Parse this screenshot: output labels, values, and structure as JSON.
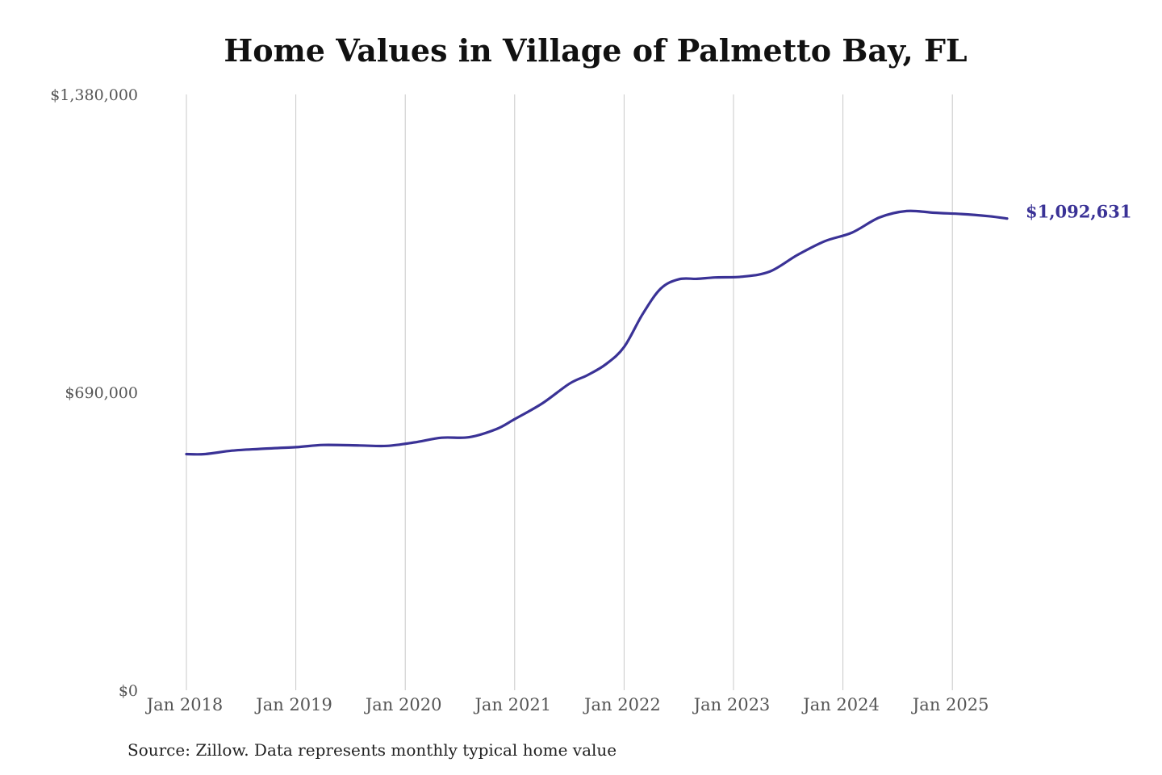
{
  "chart_data": {
    "type": "line",
    "title": "Home Values in Village of Palmetto Bay, FL",
    "xlabel": "",
    "ylabel": "",
    "ylim": [
      0,
      1380000
    ],
    "y_ticks": [
      {
        "value": 0,
        "label": "$0"
      },
      {
        "value": 690000,
        "label": "$690,000"
      },
      {
        "value": 1380000,
        "label": "$1,380,000"
      }
    ],
    "x_ticks": [
      {
        "value": "2018-01",
        "label": "Jan 2018"
      },
      {
        "value": "2019-01",
        "label": "Jan 2019"
      },
      {
        "value": "2020-01",
        "label": "Jan 2020"
      },
      {
        "value": "2021-01",
        "label": "Jan 2021"
      },
      {
        "value": "2022-01",
        "label": "Jan 2022"
      },
      {
        "value": "2023-01",
        "label": "Jan 2023"
      },
      {
        "value": "2024-01",
        "label": "Jan 2024"
      },
      {
        "value": "2025-01",
        "label": "Jan 2025"
      }
    ],
    "grid": "vertical",
    "series": [
      {
        "color": "#3a3296",
        "points": [
          {
            "x": "2018-01",
            "y": 547000
          },
          {
            "x": "2018-03",
            "y": 547000
          },
          {
            "x": "2018-06",
            "y": 555000
          },
          {
            "x": "2018-09",
            "y": 559000
          },
          {
            "x": "2019-01",
            "y": 563000
          },
          {
            "x": "2019-04",
            "y": 568000
          },
          {
            "x": "2019-08",
            "y": 567000
          },
          {
            "x": "2019-11",
            "y": 566000
          },
          {
            "x": "2020-02",
            "y": 574000
          },
          {
            "x": "2020-05",
            "y": 585000
          },
          {
            "x": "2020-08",
            "y": 586000
          },
          {
            "x": "2020-11",
            "y": 605000
          },
          {
            "x": "2021-01",
            "y": 628000
          },
          {
            "x": "2021-04",
            "y": 664000
          },
          {
            "x": "2021-07",
            "y": 710000
          },
          {
            "x": "2021-09",
            "y": 730000
          },
          {
            "x": "2021-11",
            "y": 755000
          },
          {
            "x": "2022-01",
            "y": 795000
          },
          {
            "x": "2022-03",
            "y": 870000
          },
          {
            "x": "2022-05",
            "y": 930000
          },
          {
            "x": "2022-07",
            "y": 952000
          },
          {
            "x": "2022-09",
            "y": 953000
          },
          {
            "x": "2022-11",
            "y": 956000
          },
          {
            "x": "2023-02",
            "y": 958000
          },
          {
            "x": "2023-05",
            "y": 970000
          },
          {
            "x": "2023-08",
            "y": 1008000
          },
          {
            "x": "2023-11",
            "y": 1040000
          },
          {
            "x": "2024-02",
            "y": 1060000
          },
          {
            "x": "2024-05",
            "y": 1095000
          },
          {
            "x": "2024-08",
            "y": 1110000
          },
          {
            "x": "2024-11",
            "y": 1106000
          },
          {
            "x": "2025-02",
            "y": 1103000
          },
          {
            "x": "2025-05",
            "y": 1098000
          },
          {
            "x": "2025-07",
            "y": 1092631
          }
        ]
      }
    ],
    "end_label": "$1,092,631",
    "source": "Source: Zillow. Data represents monthly typical home value"
  }
}
